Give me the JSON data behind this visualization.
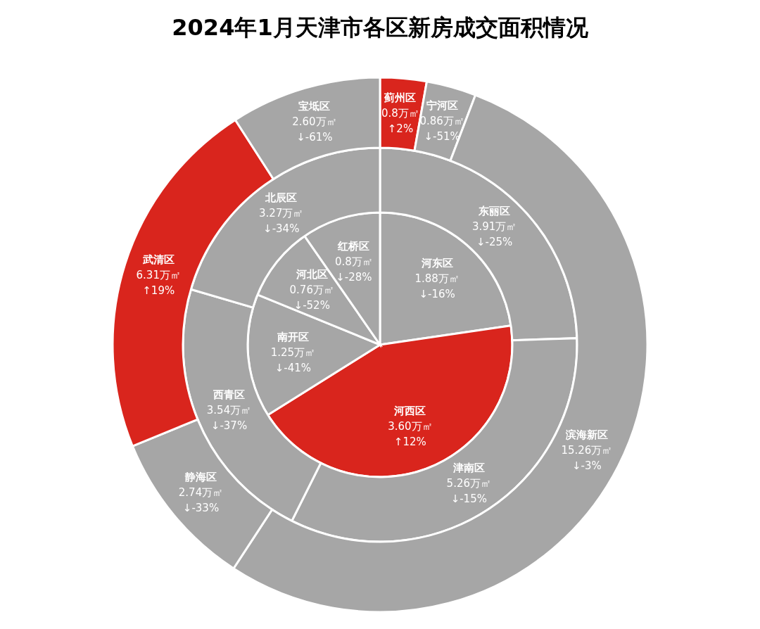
{
  "chart_data": [
    {
      "type": "pie",
      "title": "2024年1月天津市各区新房成交面积情况",
      "categories": [
        "河东区",
        "河西区",
        "南开区",
        "河北区",
        "红桥区"
      ],
      "values": [
        1.88,
        3.6,
        1.25,
        0.76,
        0.8
      ],
      "colors": [
        "#a6a6a6",
        "#d9251d",
        "#a6a6a6",
        "#a6a6a6",
        "#a6a6a6"
      ],
      "value_labels": [
        "1.88万㎡\n↓-16%",
        "3.60万㎡\n↑12%",
        "1.25万㎡\n↓-41%",
        "0.76万㎡\n↓-52%",
        "0.8万㎡\n↓-28%"
      ]
    },
    {
      "type": "donut",
      "categories": [
        "东丽区",
        "津南区",
        "西青区",
        "北辰区"
      ],
      "values": [
        3.91,
        5.26,
        3.54,
        3.27
      ],
      "colors": [
        "#a6a6a6",
        "#a6a6a6",
        "#a6a6a6",
        "#a6a6a6"
      ],
      "value_labels": [
        "3.91万㎡\n↓-25%",
        "5.26万㎡\n↓-15%",
        "3.54万㎡\n↓-37%",
        "3.27万㎡\n↓-34%"
      ]
    },
    {
      "type": "donut",
      "categories": [
        "蓟州区",
        "宁河区",
        "滨海新区",
        "静海区",
        "武清区",
        "宝坻区"
      ],
      "values": [
        0.8,
        0.86,
        15.26,
        2.74,
        6.31,
        2.6
      ],
      "colors": [
        "#d9251d",
        "#a6a6a6",
        "#a6a6a6",
        "#a6a6a6",
        "#d9251d",
        "#a6a6a6"
      ],
      "value_labels": [
        "0.8万㎡\n↑2%",
        "0.86万㎡\n↓-51%",
        "15.26万㎡\n↓-3%",
        "2.74万㎡\n↓-33%",
        "6.31万㎡\n↑19%",
        "2.60万㎡\n↓-61%"
      ]
    }
  ]
}
